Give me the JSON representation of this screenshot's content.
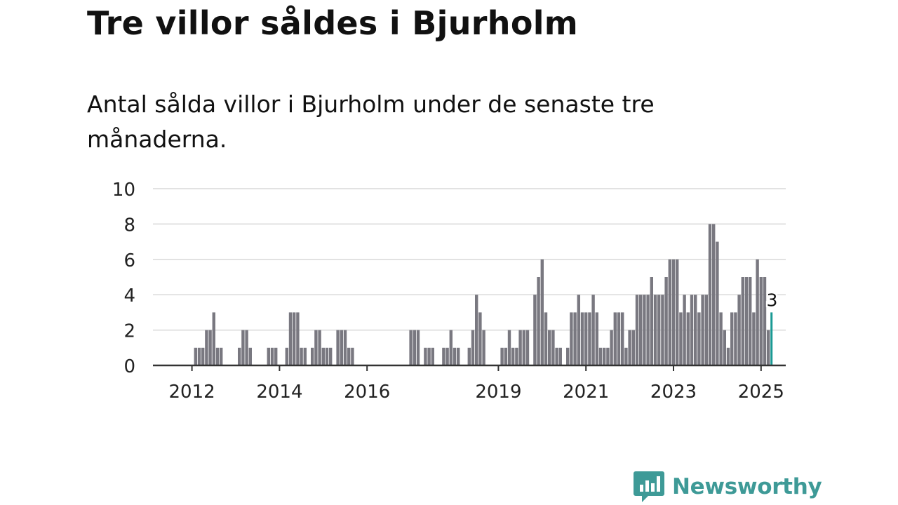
{
  "title": "Tre villor såldes i Bjurholm",
  "subtitle": "Antal sålda villor i Bjurholm under de senaste tre månaderna.",
  "brand": {
    "name": "Newsworthy",
    "icon": "newsworthy-logo-icon",
    "color": "#3e9a97"
  },
  "chart_data": {
    "type": "bar",
    "y_ticks": [
      "0",
      "2",
      "4",
      "6",
      "8",
      "10"
    ],
    "ylim": [
      0,
      10
    ],
    "x_ticks": [
      {
        "label": "2012",
        "index": 8
      },
      {
        "label": "2014",
        "index": 32
      },
      {
        "label": "2016",
        "index": 56
      },
      {
        "label": "2019",
        "index": 92
      },
      {
        "label": "2021",
        "index": 116
      },
      {
        "label": "2023",
        "index": 140
      },
      {
        "label": "2025",
        "index": 164
      }
    ],
    "start": "2011-05",
    "values": [
      0,
      0,
      0,
      0,
      0,
      0,
      0,
      0,
      0,
      1,
      1,
      1,
      2,
      2,
      3,
      1,
      1,
      0,
      0,
      0,
      0,
      1,
      2,
      2,
      1,
      0,
      0,
      0,
      0,
      1,
      1,
      1,
      0,
      0,
      1,
      3,
      3,
      3,
      1,
      1,
      0,
      1,
      2,
      2,
      1,
      1,
      1,
      0,
      2,
      2,
      2,
      1,
      1,
      0,
      0,
      0,
      0,
      0,
      0,
      0,
      0,
      0,
      0,
      0,
      0,
      0,
      0,
      0,
      2,
      2,
      2,
      0,
      1,
      1,
      1,
      0,
      0,
      1,
      1,
      2,
      1,
      1,
      0,
      0,
      1,
      2,
      4,
      3,
      2,
      0,
      0,
      0,
      0,
      1,
      1,
      2,
      1,
      1,
      2,
      2,
      2,
      0,
      4,
      5,
      6,
      3,
      2,
      2,
      1,
      1,
      0,
      1,
      3,
      3,
      4,
      3,
      3,
      3,
      4,
      3,
      1,
      1,
      1,
      2,
      3,
      3,
      3,
      1,
      2,
      2,
      4,
      4,
      4,
      4,
      5,
      4,
      4,
      4,
      5,
      6,
      6,
      6,
      3,
      4,
      3,
      4,
      4,
      3,
      4,
      4,
      8,
      8,
      7,
      3,
      2,
      1,
      3,
      3,
      4,
      5,
      5,
      5,
      3,
      6,
      5,
      5,
      2,
      3
    ],
    "highlight": {
      "index": 167,
      "label": "3",
      "color": "#1a9a94"
    },
    "bar_color": "#797880"
  }
}
